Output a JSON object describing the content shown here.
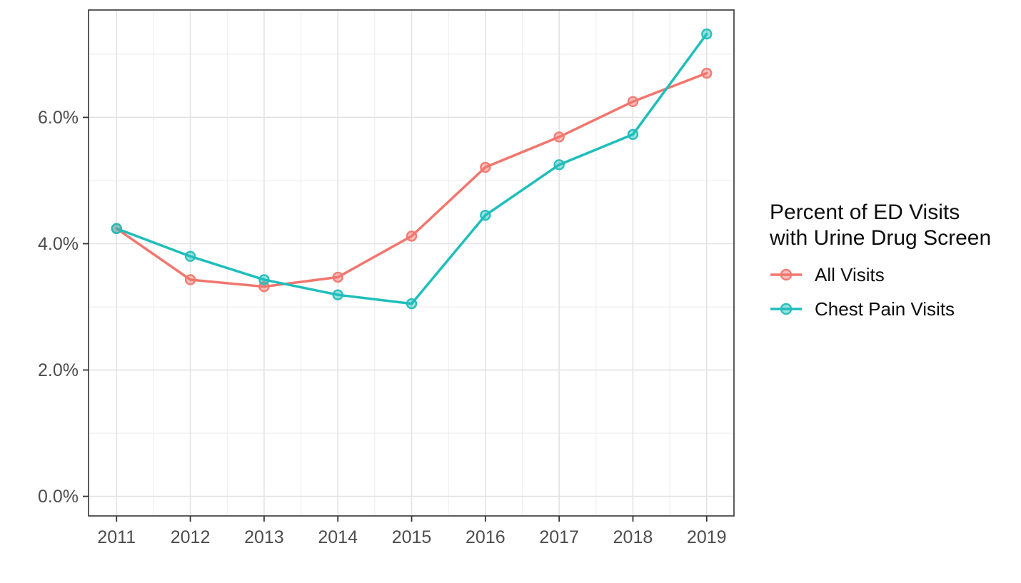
{
  "chart_data": {
    "type": "line",
    "title": "",
    "xlabel": "",
    "ylabel": "",
    "x": [
      2011,
      2012,
      2013,
      2014,
      2015,
      2016,
      2017,
      2018,
      2019
    ],
    "x_tick_labels": [
      "2011",
      "2012",
      "2013",
      "2014",
      "2015",
      "2016",
      "2017",
      "2018",
      "2019"
    ],
    "y_tick_values": [
      0,
      2,
      4,
      6
    ],
    "y_tick_labels": [
      "0.0%",
      "2.0%",
      "4.0%",
      "6.0%"
    ],
    "y_minor_values": [
      1,
      3,
      5,
      7
    ],
    "xlim": [
      2010.62,
      2019.37
    ],
    "ylim": [
      -0.31,
      7.7
    ],
    "grid": "major+minor",
    "legend_position": "right",
    "legend_title_lines": [
      "Percent of ED Visits",
      "with Urine Drug Screen"
    ],
    "series": [
      {
        "name": "All Visits",
        "color": "#F2766E",
        "values": [
          4.24,
          3.43,
          3.32,
          3.47,
          4.12,
          5.21,
          5.69,
          6.25,
          6.7
        ]
      },
      {
        "name": "Chest Pain Visits",
        "color": "#1FBEBB",
        "values": [
          4.24,
          3.8,
          3.43,
          3.19,
          3.05,
          4.45,
          5.25,
          5.73,
          7.32
        ]
      }
    ]
  },
  "style": {
    "axis_text_color": "#4D4D4D",
    "tick_color": "#333333",
    "panel_border_color": "#333333",
    "grid_major_color": "#E3E3E3",
    "grid_minor_color": "#EDEDED",
    "legend_text_color": "#0d0d0d",
    "background_color": "#FFFFFF"
  }
}
